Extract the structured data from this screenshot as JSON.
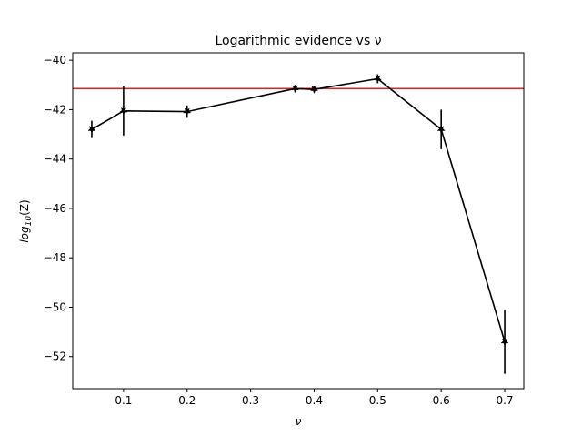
{
  "chart_data": {
    "type": "line",
    "title": "Logarithmic evidence vs ν",
    "xlabel": "ν",
    "ylabel": {
      "base": "log",
      "sub": "10",
      "rest": "(Z)"
    },
    "xlim": [
      0.02,
      0.73
    ],
    "ylim": [
      -53.3,
      -39.7
    ],
    "xticks": [
      {
        "value": 0.1,
        "label": "0.1"
      },
      {
        "value": 0.2,
        "label": "0.2"
      },
      {
        "value": 0.3,
        "label": "0.3"
      },
      {
        "value": 0.4,
        "label": "0.4"
      },
      {
        "value": 0.5,
        "label": "0.5"
      },
      {
        "value": 0.6,
        "label": "0.6"
      },
      {
        "value": 0.7,
        "label": "0.7"
      }
    ],
    "yticks": [
      {
        "value": -40,
        "label": "−40"
      },
      {
        "value": -42,
        "label": "−42"
      },
      {
        "value": -44,
        "label": "−44"
      },
      {
        "value": -46,
        "label": "−46"
      },
      {
        "value": -48,
        "label": "−48"
      },
      {
        "value": -50,
        "label": "−50"
      },
      {
        "value": -52,
        "label": "−52"
      }
    ],
    "grid": false,
    "series": [
      {
        "color": "#000000",
        "marker": "star",
        "points": [
          {
            "x": 0.05,
            "y": -42.8,
            "err": 0.35
          },
          {
            "x": 0.1,
            "y": -42.05,
            "err": 1.0
          },
          {
            "x": 0.2,
            "y": -42.08,
            "err": 0.25
          },
          {
            "x": 0.37,
            "y": -41.15,
            "err": 0.15
          },
          {
            "x": 0.4,
            "y": -41.18,
            "err": 0.12
          },
          {
            "x": 0.5,
            "y": -40.75,
            "err": 0.18
          },
          {
            "x": 0.6,
            "y": -42.8,
            "err": 0.8
          },
          {
            "x": 0.7,
            "y": -51.4,
            "err": 1.3
          }
        ]
      }
    ],
    "reference_line": {
      "y": -41.15,
      "color": "#d62728"
    }
  }
}
